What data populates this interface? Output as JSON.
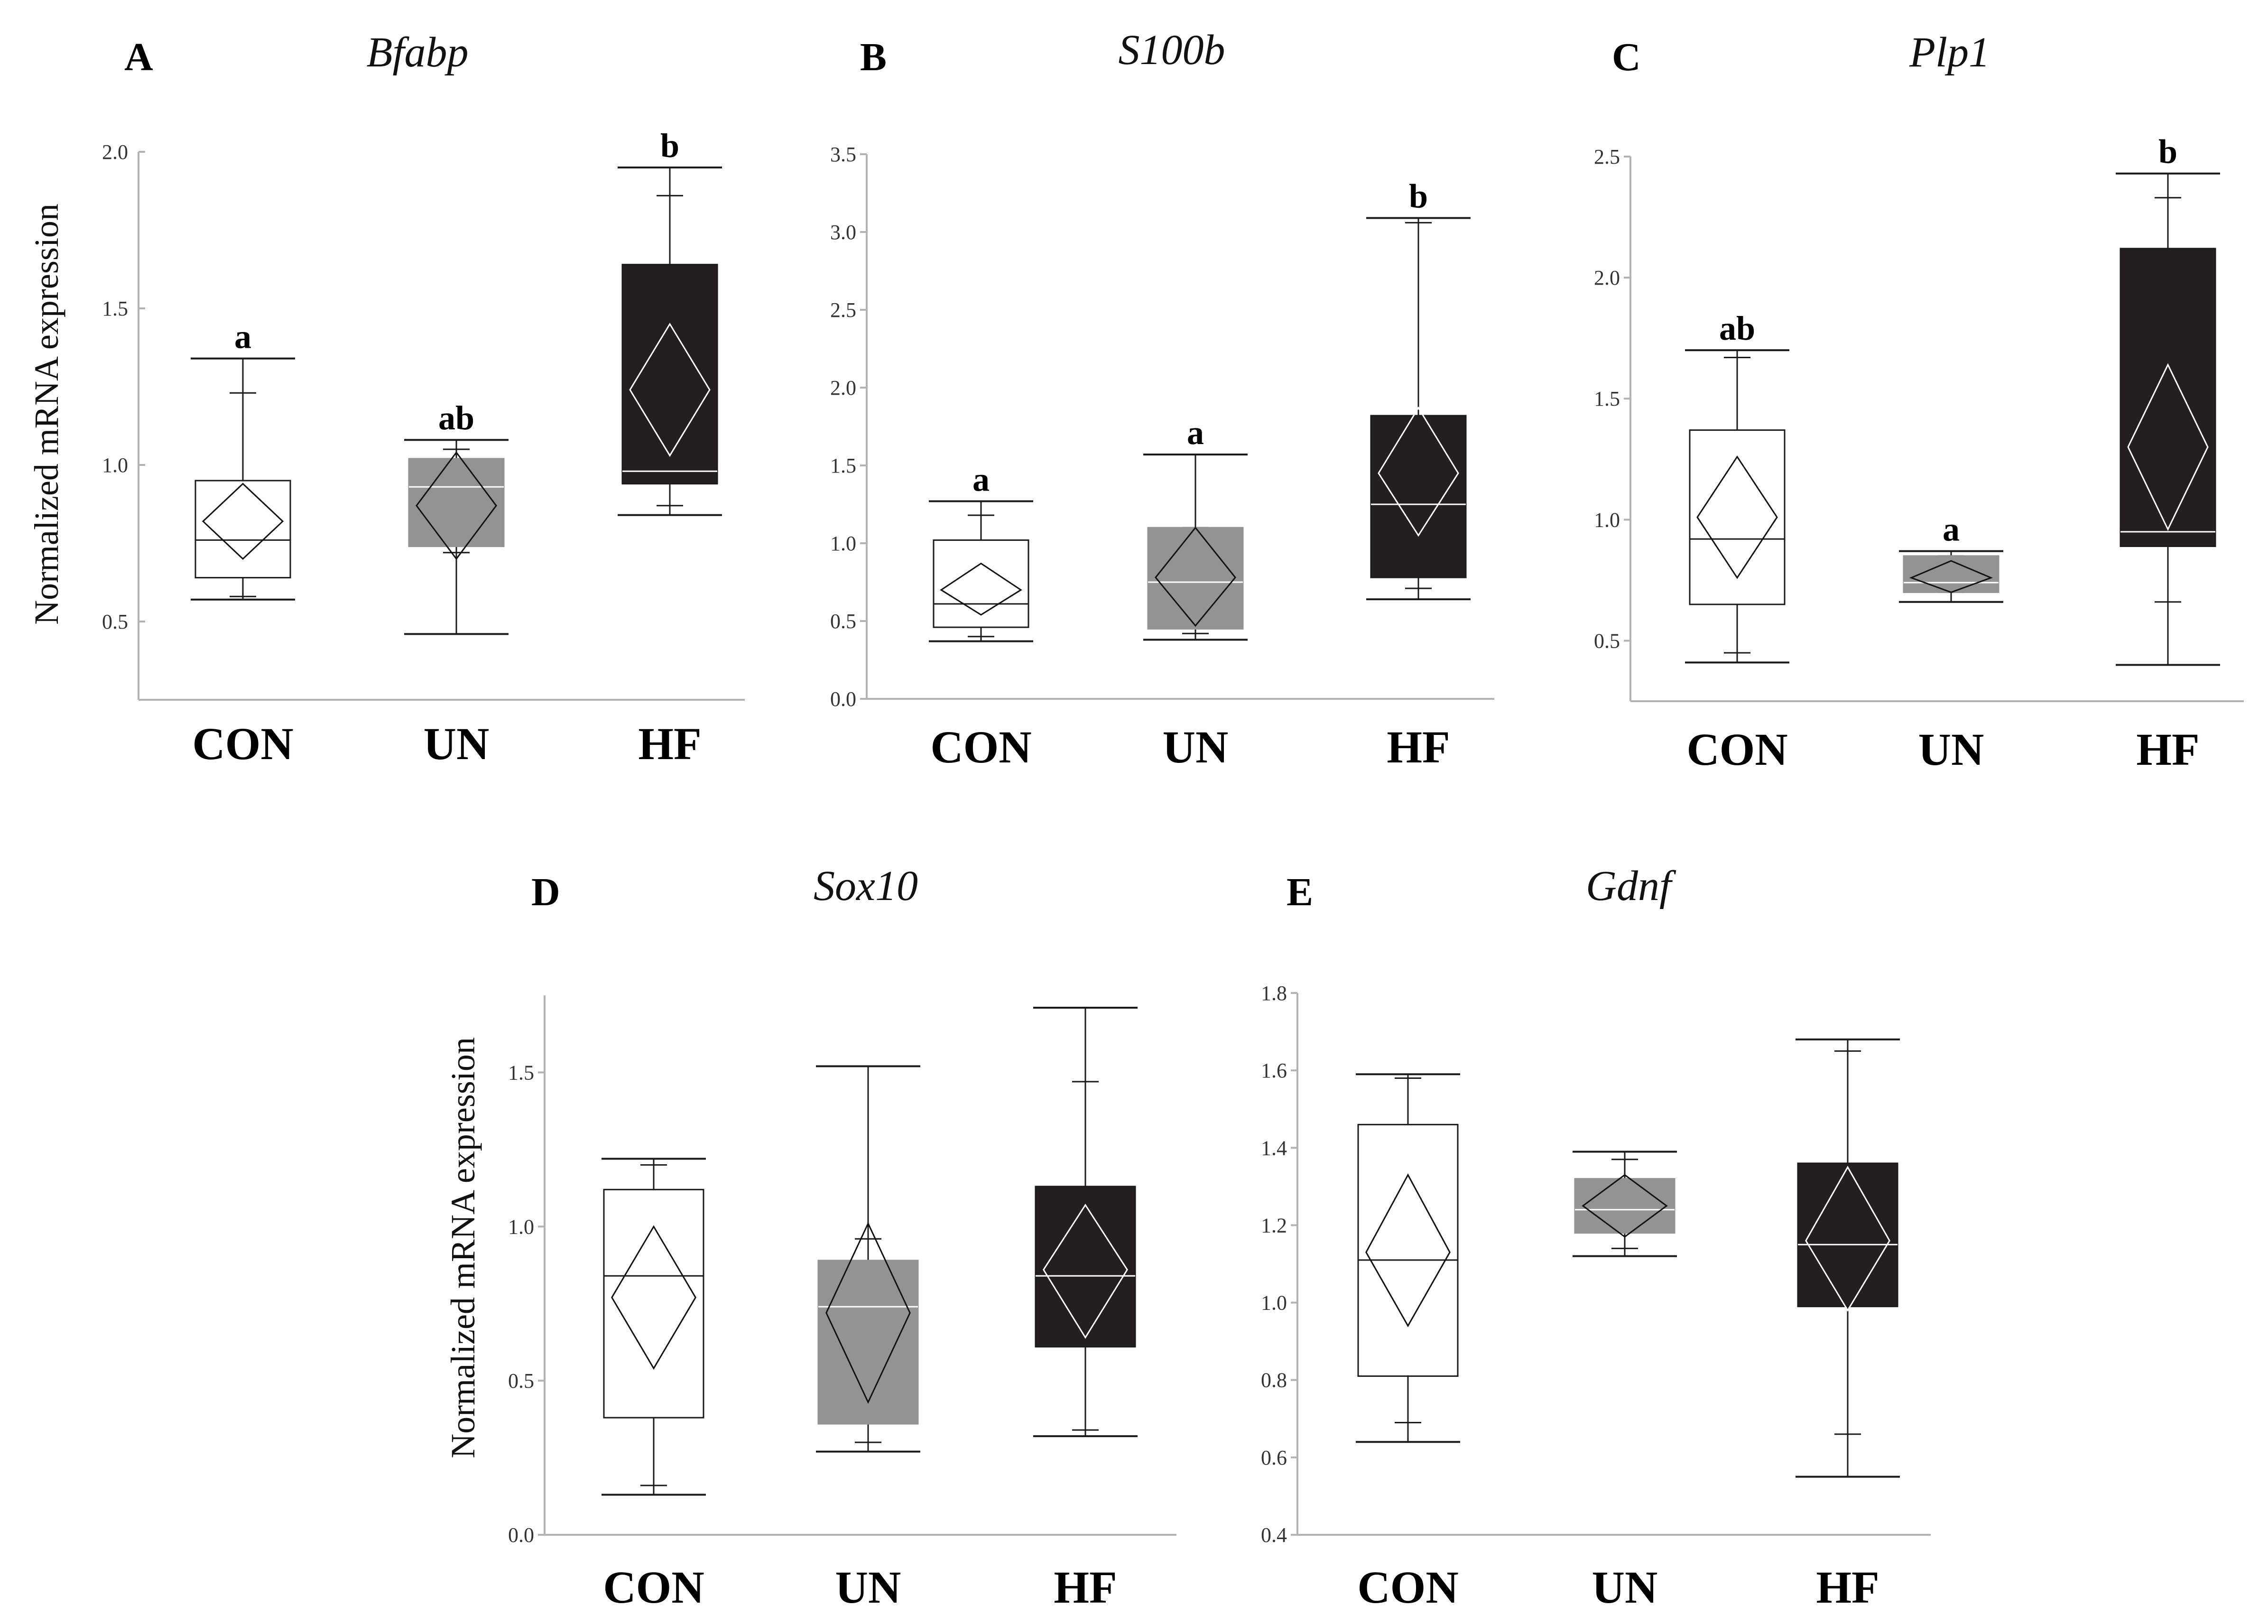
{
  "figure": {
    "y_axis_label": "Normalized mRNA expression",
    "colors": {
      "CON": "#ffffff",
      "UN": "#939393",
      "HF": "#231f20",
      "stroke": "#1a1a1a",
      "axis": "#b3b3b3"
    }
  },
  "chart_data": [
    {
      "type": "box",
      "panel": "A",
      "title": "Bfabp",
      "ylabel": "Normalized mRNA expression",
      "ylim": [
        0.25,
        2.0
      ],
      "yticks": [
        0.5,
        1.0,
        1.5,
        2.0
      ],
      "ytick_labels": [
        "0.5",
        "1.0",
        "1.5",
        "2.0"
      ],
      "categories": [
        "CON",
        "UN",
        "HF"
      ],
      "groups": [
        {
          "name": "CON",
          "whisker_low": 0.57,
          "q1": 0.64,
          "median": 0.76,
          "q3": 0.95,
          "whisker_high": 1.34,
          "mean": 0.82,
          "ci_low": 0.7,
          "ci_high": 0.94,
          "sd_low": 0.58,
          "sd_high": 1.23,
          "letter": "a"
        },
        {
          "name": "UN",
          "whisker_low": 0.46,
          "q1": 0.74,
          "median": 0.93,
          "q3": 1.02,
          "whisker_high": 1.08,
          "mean": 0.87,
          "ci_low": 0.7,
          "ci_high": 1.04,
          "sd_low": 0.72,
          "sd_high": 1.05,
          "letter": "ab"
        },
        {
          "name": "HF",
          "whisker_low": 0.84,
          "q1": 0.94,
          "median": 0.98,
          "q3": 1.64,
          "whisker_high": 1.95,
          "mean": 1.24,
          "ci_low": 1.03,
          "ci_high": 1.45,
          "sd_low": 0.87,
          "sd_high": 1.86,
          "letter": "b"
        }
      ]
    },
    {
      "type": "box",
      "panel": "B",
      "title": "S100b",
      "ylabel": "",
      "ylim": [
        0.0,
        3.5
      ],
      "yticks": [
        0.0,
        0.5,
        1.0,
        1.5,
        2.0,
        2.5,
        3.0,
        3.5
      ],
      "ytick_labels": [
        "0.0",
        "0.5",
        "1.0",
        "1.5",
        "2.0",
        "2.5",
        "3.0",
        "3.5"
      ],
      "categories": [
        "CON",
        "UN",
        "HF"
      ],
      "groups": [
        {
          "name": "CON",
          "whisker_low": 0.37,
          "q1": 0.46,
          "median": 0.61,
          "q3": 1.02,
          "whisker_high": 1.27,
          "mean": 0.7,
          "ci_low": 0.54,
          "ci_high": 0.87,
          "sd_low": 0.4,
          "sd_high": 1.18,
          "letter": "a"
        },
        {
          "name": "UN",
          "whisker_low": 0.38,
          "q1": 0.45,
          "median": 0.75,
          "q3": 1.1,
          "whisker_high": 1.57,
          "mean": 0.78,
          "ci_low": 0.47,
          "ci_high": 1.1,
          "sd_low": 0.42,
          "sd_high": 1.1,
          "letter": "a"
        },
        {
          "name": "HF",
          "whisker_low": 0.64,
          "q1": 0.78,
          "median": 1.25,
          "q3": 1.82,
          "whisker_high": 3.09,
          "mean": 1.45,
          "ci_low": 1.05,
          "ci_high": 1.87,
          "sd_low": 0.71,
          "sd_high": 3.06,
          "letter": "b"
        }
      ]
    },
    {
      "type": "box",
      "panel": "C",
      "title": "Plp1",
      "ylabel": "",
      "ylim": [
        0.25,
        2.5
      ],
      "yticks": [
        0.5,
        1.0,
        1.5,
        2.0,
        2.5
      ],
      "ytick_labels": [
        "0.5",
        "1.0",
        "1.5",
        "2.0",
        "2.5"
      ],
      "categories": [
        "CON",
        "UN",
        "HF"
      ],
      "groups": [
        {
          "name": "CON",
          "whisker_low": 0.41,
          "q1": 0.65,
          "median": 0.92,
          "q3": 1.37,
          "whisker_high": 1.7,
          "mean": 1.01,
          "ci_low": 0.76,
          "ci_high": 1.26,
          "sd_low": 0.45,
          "sd_high": 1.67,
          "letter": "ab"
        },
        {
          "name": "UN",
          "whisker_low": 0.66,
          "q1": 0.7,
          "median": 0.74,
          "q3": 0.85,
          "whisker_high": 0.87,
          "mean": 0.76,
          "ci_low": 0.7,
          "ci_high": 0.83,
          "sd_low": 0.7,
          "sd_high": 0.85,
          "letter": "a"
        },
        {
          "name": "HF",
          "whisker_low": 0.4,
          "q1": 0.89,
          "median": 0.95,
          "q3": 2.12,
          "whisker_high": 2.43,
          "mean": 1.3,
          "ci_low": 0.96,
          "ci_high": 1.64,
          "sd_low": 0.66,
          "sd_high": 2.33,
          "letter": "b"
        }
      ]
    },
    {
      "type": "box",
      "panel": "D",
      "title": "Sox10",
      "ylabel": "Normalized mRNA expression",
      "ylim": [
        0.0,
        1.75
      ],
      "yticks": [
        0.0,
        0.5,
        1.0,
        1.5
      ],
      "ytick_labels": [
        "0.0",
        "0.5",
        "1.0",
        "1.5"
      ],
      "categories": [
        "CON",
        "UN",
        "HF"
      ],
      "groups": [
        {
          "name": "CON",
          "whisker_low": 0.13,
          "q1": 0.38,
          "median": 0.84,
          "q3": 1.12,
          "whisker_high": 1.22,
          "mean": 0.77,
          "ci_low": 0.54,
          "ci_high": 1.0,
          "sd_low": 0.16,
          "sd_high": 1.2,
          "letter": ""
        },
        {
          "name": "UN",
          "whisker_low": 0.27,
          "q1": 0.36,
          "median": 0.74,
          "q3": 0.89,
          "whisker_high": 1.52,
          "mean": 0.72,
          "ci_low": 0.43,
          "ci_high": 1.01,
          "sd_low": 0.3,
          "sd_high": 0.96,
          "letter": ""
        },
        {
          "name": "HF",
          "whisker_low": 0.32,
          "q1": 0.61,
          "median": 0.84,
          "q3": 1.13,
          "whisker_high": 1.71,
          "mean": 0.86,
          "ci_low": 0.64,
          "ci_high": 1.07,
          "sd_low": 0.34,
          "sd_high": 1.47,
          "letter": ""
        }
      ]
    },
    {
      "type": "box",
      "panel": "E",
      "title": "Gdnf",
      "ylabel": "",
      "ylim": [
        0.4,
        1.8
      ],
      "yticks": [
        0.4,
        0.6,
        0.8,
        1.0,
        1.2,
        1.4,
        1.6,
        1.8
      ],
      "ytick_labels": [
        "0.4",
        "0.6",
        "0.8",
        "1.0",
        "1.2",
        "1.4",
        "1.6",
        "1.8"
      ],
      "categories": [
        "CON",
        "UN",
        "HF"
      ],
      "groups": [
        {
          "name": "CON",
          "whisker_low": 0.64,
          "q1": 0.81,
          "median": 1.11,
          "q3": 1.46,
          "whisker_high": 1.59,
          "mean": 1.13,
          "ci_low": 0.94,
          "ci_high": 1.33,
          "sd_low": 0.69,
          "sd_high": 1.58,
          "letter": ""
        },
        {
          "name": "UN",
          "whisker_low": 1.12,
          "q1": 1.18,
          "median": 1.24,
          "q3": 1.32,
          "whisker_high": 1.39,
          "mean": 1.25,
          "ci_low": 1.17,
          "ci_high": 1.33,
          "sd_low": 1.14,
          "sd_high": 1.37,
          "letter": ""
        },
        {
          "name": "HF",
          "whisker_low": 0.55,
          "q1": 0.99,
          "median": 1.15,
          "q3": 1.36,
          "whisker_high": 1.68,
          "mean": 1.16,
          "ci_low": 0.98,
          "ci_high": 1.35,
          "sd_low": 0.66,
          "sd_high": 1.65,
          "letter": ""
        }
      ]
    }
  ]
}
